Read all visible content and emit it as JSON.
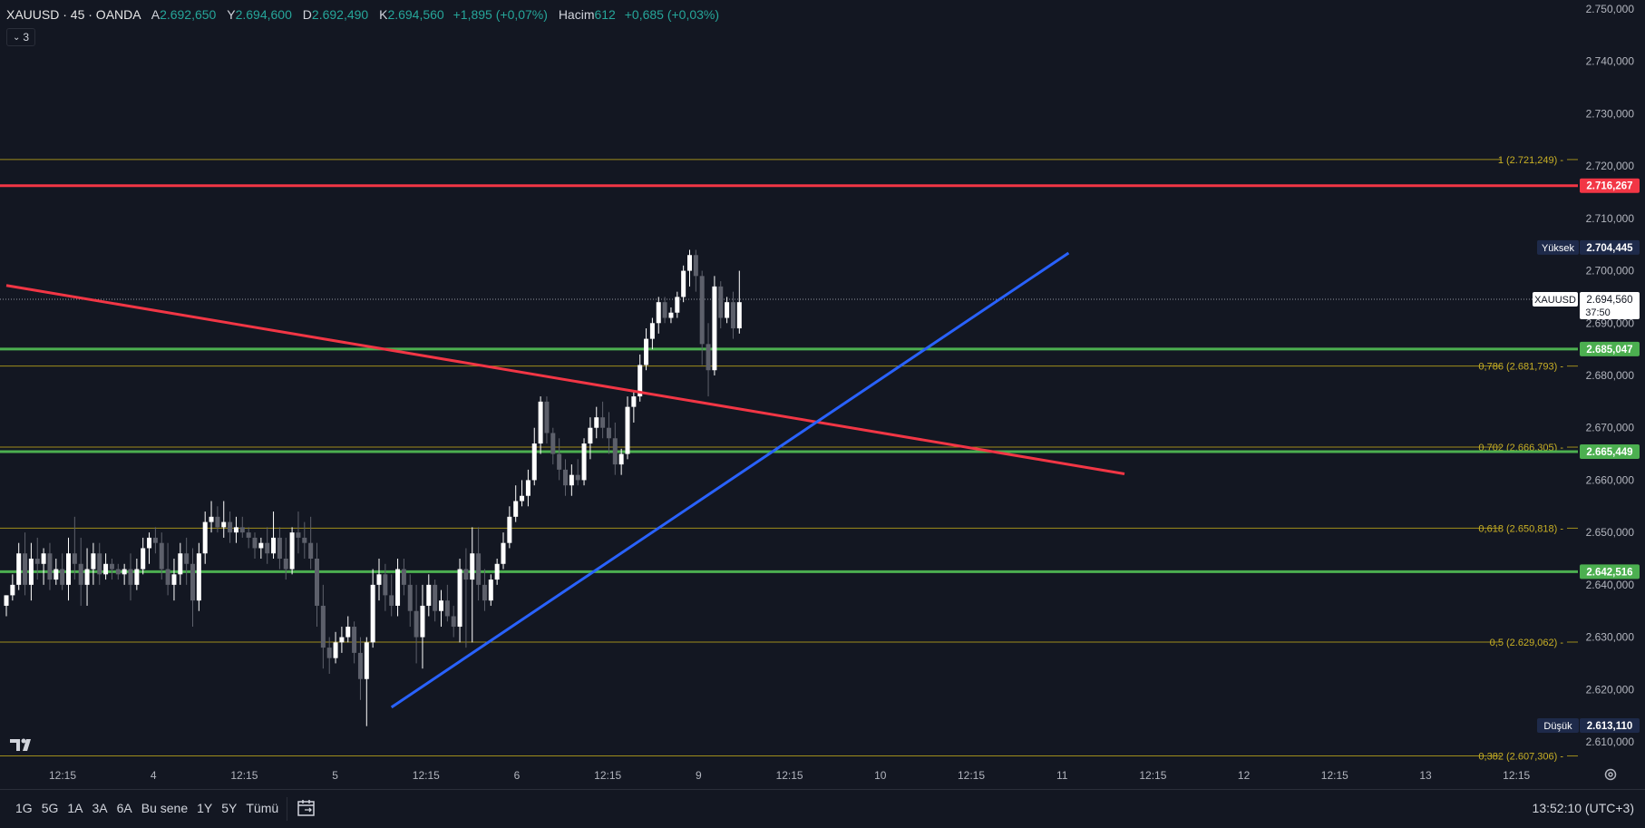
{
  "header": {
    "symbol": "XAUUSD · 45 · OANDA",
    "open_label": "A",
    "open": "2.692,650",
    "high_label": "Y",
    "high": "2.694,600",
    "low_label": "D",
    "low": "2.692,490",
    "close_label": "K",
    "close": "2.694,560",
    "change": "+1,895 (+0,07%)",
    "volume_label": "Hacim",
    "volume": "612",
    "volume_change": "+0,685 (+0,03%)",
    "collapse_count": "3"
  },
  "bottom_bar": {
    "ranges": [
      "1G",
      "5G",
      "1A",
      "3A",
      "6A",
      "Bu sene",
      "1Y",
      "5Y",
      "Tümü"
    ],
    "clock": "13:52:10 (UTC+3)"
  },
  "chart_data": {
    "type": "candlestick",
    "y_axis": {
      "range": [
        2605,
        2752
      ],
      "ticks": [
        {
          "value": 2750,
          "label": "2.750,000"
        },
        {
          "value": 2740,
          "label": "2.740,000"
        },
        {
          "value": 2730,
          "label": "2.730,000"
        },
        {
          "value": 2720,
          "label": "2.720,000"
        },
        {
          "value": 2710,
          "label": "2.710,000"
        },
        {
          "value": 2700,
          "label": "2.700,000"
        },
        {
          "value": 2690,
          "label": "2.690,000"
        },
        {
          "value": 2680,
          "label": "2.680,000"
        },
        {
          "value": 2670,
          "label": "2.670,000"
        },
        {
          "value": 2660,
          "label": "2.660,000"
        },
        {
          "value": 2650,
          "label": "2.650,000"
        },
        {
          "value": 2640,
          "label": "2.640,000"
        },
        {
          "value": 2630,
          "label": "2.630,000"
        },
        {
          "value": 2620,
          "label": "2.620,000"
        },
        {
          "value": 2610,
          "label": "2.610,000"
        }
      ]
    },
    "x_axis": {
      "ticks": [
        "12:15",
        "4",
        "12:15",
        "5",
        "12:15",
        "6",
        "12:15",
        "9",
        "12:15",
        "10",
        "12:15",
        "11",
        "12:15",
        "12",
        "12:15",
        "13",
        "12:15"
      ]
    },
    "fib_levels": [
      {
        "value": 2721.249,
        "label": "1 (2.721,249)"
      },
      {
        "value": 2681.793,
        "label": "0,786 (2.681,793)"
      },
      {
        "value": 2666.305,
        "label": "0,702 (2.666,305)"
      },
      {
        "value": 2650.818,
        "label": "0,618 (2.650,818)"
      },
      {
        "value": 2629.062,
        "label": "0,5 (2.629,062)"
      },
      {
        "value": 2607.306,
        "label": "0,382 (2.607,306)"
      }
    ],
    "horizontal_levels": [
      {
        "value": 2716.267,
        "label": "2.716,267",
        "color": "#f23645"
      },
      {
        "value": 2685.047,
        "label": "2.685,047",
        "color": "#4caf50"
      },
      {
        "value": 2665.449,
        "label": "2.665,449",
        "color": "#4caf50"
      },
      {
        "value": 2642.516,
        "label": "2.642,516",
        "color": "#4caf50"
      }
    ],
    "high_marker": {
      "title": "Yüksek",
      "value": 2704.445,
      "label": "2.704,445"
    },
    "low_marker": {
      "title": "Düşük",
      "value": 2613.11,
      "label": "2.613,110"
    },
    "current_price": {
      "symbol": "XAUUSD",
      "value": 2694.56,
      "label": "2.694,560",
      "countdown": "37:50"
    },
    "trendlines": [
      {
        "color": "#f23645",
        "from": [
          0,
          2697.2
        ],
        "to": [
          180,
          2661.2
        ]
      },
      {
        "color": "#2962ff",
        "from": [
          62,
          2616.6
        ],
        "to": [
          171,
          2703.4
        ]
      }
    ],
    "candles": [
      [
        2636,
        2638,
        2634,
        2638
      ],
      [
        2638,
        2642,
        2637,
        2640
      ],
      [
        2640,
        2648,
        2639,
        2646
      ],
      [
        2646,
        2650,
        2638,
        2640
      ],
      [
        2640,
        2648,
        2637,
        2645
      ],
      [
        2645,
        2649,
        2641,
        2644
      ],
      [
        2644,
        2647,
        2640,
        2646
      ],
      [
        2646,
        2648,
        2639,
        2641
      ],
      [
        2641,
        2645,
        2640,
        2643
      ],
      [
        2643,
        2646,
        2639,
        2640
      ],
      [
        2640,
        2649,
        2637,
        2646
      ],
      [
        2646,
        2653,
        2641,
        2644
      ],
      [
        2644,
        2649,
        2636,
        2640
      ],
      [
        2640,
        2647,
        2636,
        2643
      ],
      [
        2643,
        2648,
        2640,
        2646
      ],
      [
        2646,
        2648,
        2640,
        2642
      ],
      [
        2642,
        2646,
        2641,
        2644
      ],
      [
        2644,
        2645,
        2641,
        2643
      ],
      [
        2643,
        2644,
        2641,
        2642
      ],
      [
        2642,
        2644,
        2640,
        2643
      ],
      [
        2643,
        2646,
        2637,
        2640
      ],
      [
        2640,
        2645,
        2639,
        2643
      ],
      [
        2643,
        2649,
        2642,
        2647
      ],
      [
        2647,
        2650,
        2644,
        2649
      ],
      [
        2649,
        2651,
        2646,
        2648
      ],
      [
        2648,
        2650,
        2641,
        2643
      ],
      [
        2643,
        2648,
        2638,
        2640
      ],
      [
        2640,
        2645,
        2637,
        2642
      ],
      [
        2642,
        2648,
        2640,
        2646
      ],
      [
        2646,
        2649,
        2640,
        2644
      ],
      [
        2644,
        2647,
        2632,
        2637
      ],
      [
        2637,
        2648,
        2635,
        2646
      ],
      [
        2646,
        2654,
        2644,
        2652
      ],
      [
        2652,
        2656,
        2650,
        2653
      ],
      [
        2653,
        2655,
        2650,
        2651
      ],
      [
        2651,
        2656,
        2649,
        2652
      ],
      [
        2652,
        2654,
        2648,
        2650
      ],
      [
        2650,
        2653,
        2648,
        2651
      ],
      [
        2651,
        2653,
        2649,
        2650
      ],
      [
        2650,
        2651,
        2647,
        2649
      ],
      [
        2649,
        2650,
        2645,
        2647
      ],
      [
        2647,
        2649,
        2645,
        2648
      ],
      [
        2648,
        2651,
        2644,
        2646
      ],
      [
        2646,
        2654,
        2645,
        2649
      ],
      [
        2649,
        2651,
        2643,
        2645
      ],
      [
        2645,
        2649,
        2641,
        2643
      ],
      [
        2643,
        2651,
        2642,
        2650
      ],
      [
        2650,
        2654,
        2646,
        2649
      ],
      [
        2649,
        2652,
        2645,
        2648
      ],
      [
        2648,
        2653,
        2643,
        2645
      ],
      [
        2645,
        2648,
        2632,
        2636
      ],
      [
        2636,
        2640,
        2624,
        2628
      ],
      [
        2628,
        2630,
        2623,
        2626
      ],
      [
        2626,
        2631,
        2625,
        2629
      ],
      [
        2629,
        2632,
        2627,
        2630
      ],
      [
        2630,
        2634,
        2629,
        2632
      ],
      [
        2632,
        2633,
        2625,
        2627
      ],
      [
        2627,
        2630,
        2618,
        2622
      ],
      [
        2622,
        2630,
        2613,
        2629
      ],
      [
        2629,
        2643,
        2628,
        2640
      ],
      [
        2640,
        2645,
        2637,
        2642
      ],
      [
        2642,
        2644,
        2635,
        2638
      ],
      [
        2638,
        2642,
        2634,
        2636
      ],
      [
        2636,
        2645,
        2634,
        2643
      ],
      [
        2643,
        2645,
        2638,
        2640
      ],
      [
        2640,
        2642,
        2632,
        2635
      ],
      [
        2635,
        2640,
        2625,
        2630
      ],
      [
        2630,
        2640,
        2624,
        2636
      ],
      [
        2636,
        2642,
        2634,
        2640
      ],
      [
        2640,
        2641,
        2633,
        2635
      ],
      [
        2635,
        2639,
        2632,
        2637
      ],
      [
        2637,
        2640,
        2633,
        2634
      ],
      [
        2634,
        2636,
        2630,
        2632
      ],
      [
        2632,
        2645,
        2629,
        2643
      ],
      [
        2643,
        2647,
        2628,
        2641
      ],
      [
        2641,
        2651,
        2629,
        2646
      ],
      [
        2646,
        2651,
        2637,
        2640
      ],
      [
        2640,
        2643,
        2635,
        2637
      ],
      [
        2637,
        2642,
        2636,
        2641
      ],
      [
        2641,
        2645,
        2640,
        2644
      ],
      [
        2644,
        2650,
        2643,
        2648
      ],
      [
        2648,
        2655,
        2647,
        2653
      ],
      [
        2653,
        2659,
        2652,
        2656
      ],
      [
        2656,
        2660,
        2655,
        2657
      ],
      [
        2657,
        2662,
        2655,
        2660
      ],
      [
        2660,
        2670,
        2659,
        2667
      ],
      [
        2667,
        2676,
        2665,
        2675
      ],
      [
        2675,
        2676,
        2667,
        2669
      ],
      [
        2669,
        2670,
        2663,
        2665
      ],
      [
        2665,
        2668,
        2660,
        2662
      ],
      [
        2662,
        2664,
        2657,
        2659
      ],
      [
        2659,
        2663,
        2657,
        2661
      ],
      [
        2661,
        2664,
        2659,
        2660
      ],
      [
        2660,
        2668,
        2659,
        2667
      ],
      [
        2667,
        2672,
        2664,
        2670
      ],
      [
        2670,
        2674,
        2668,
        2672
      ],
      [
        2672,
        2675,
        2668,
        2670
      ],
      [
        2670,
        2673,
        2665,
        2668
      ],
      [
        2668,
        2671,
        2661,
        2663
      ],
      [
        2663,
        2666,
        2661,
        2665
      ],
      [
        2665,
        2676,
        2664,
        2674
      ],
      [
        2674,
        2677,
        2671,
        2676
      ],
      [
        2676,
        2684,
        2675,
        2682
      ],
      [
        2682,
        2689,
        2681,
        2687
      ],
      [
        2687,
        2691,
        2685,
        2690
      ],
      [
        2690,
        2695,
        2688,
        2694
      ],
      [
        2694,
        2695,
        2690,
        2691
      ],
      [
        2691,
        2693,
        2690,
        2692
      ],
      [
        2692,
        2696,
        2691,
        2695
      ],
      [
        2695,
        2701,
        2694,
        2700
      ],
      [
        2700,
        2704,
        2697,
        2703
      ],
      [
        2703,
        2704,
        2696,
        2699
      ],
      [
        2699,
        2700,
        2682,
        2686
      ],
      [
        2686,
        2690,
        2676,
        2681
      ],
      [
        2681,
        2699,
        2680,
        2697
      ],
      [
        2697,
        2698,
        2689,
        2691
      ],
      [
        2691,
        2695,
        2690,
        2694
      ],
      [
        2694,
        2696,
        2687,
        2689
      ],
      [
        2689,
        2700,
        2688,
        2694
      ]
    ]
  }
}
